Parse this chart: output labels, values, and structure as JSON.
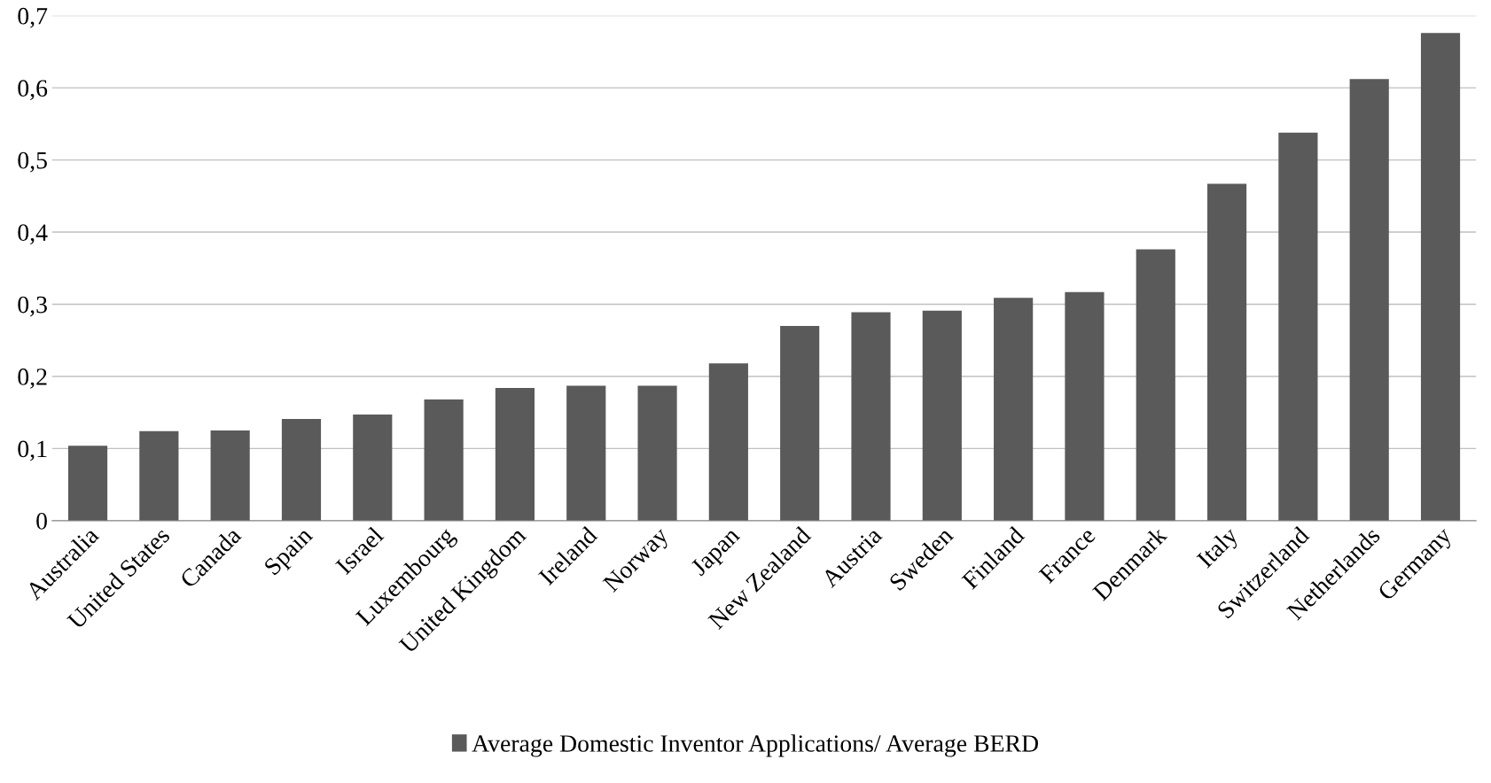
{
  "chart_data": {
    "type": "bar",
    "categories": [
      "Australia",
      "United States",
      "Canada",
      "Spain",
      "Israel",
      "Luxembourg",
      "United Kingdom",
      "Ireland",
      "Norway",
      "Japan",
      "New Zealand",
      "Austria",
      "Sweden",
      "Finland",
      "France",
      "Denmark",
      "Italy",
      "Switzerland",
      "Netherlands",
      "Germany"
    ],
    "series": [
      {
        "name": "Average Domestic Inventor Applications/ Average BERD",
        "color": "#5a5a5a",
        "values": [
          0.104,
          0.124,
          0.125,
          0.141,
          0.147,
          0.168,
          0.184,
          0.187,
          0.187,
          0.218,
          0.27,
          0.289,
          0.291,
          0.309,
          0.317,
          0.376,
          0.467,
          0.538,
          0.612,
          0.676
        ]
      }
    ],
    "ylim": [
      0,
      0.7
    ],
    "yticks": [
      {
        "value": 0,
        "label": "0"
      },
      {
        "value": 0.1,
        "label": "0,1"
      },
      {
        "value": 0.2,
        "label": "0,2"
      },
      {
        "value": 0.3,
        "label": "0,3"
      },
      {
        "value": 0.4,
        "label": "0,4"
      },
      {
        "value": 0.5,
        "label": "0,5"
      },
      {
        "value": 0.6,
        "label": "0,6"
      },
      {
        "value": 0.7,
        "label": "0,7"
      }
    ],
    "grid": "y",
    "legend": "bottom"
  }
}
